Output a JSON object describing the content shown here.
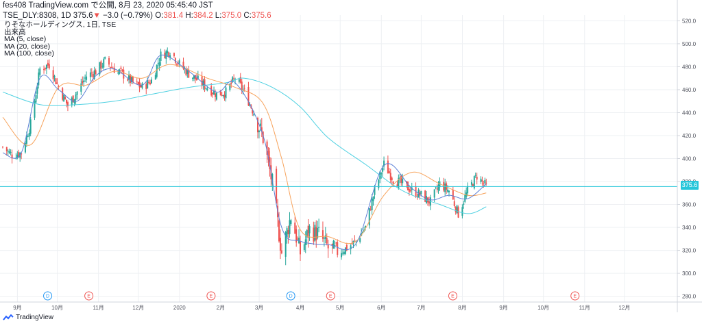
{
  "header": {
    "line1": "fes408 TradingView.com で公開, 8月 23, 2020 05:45:40 JST",
    "symbol": "TSE_DLY:8308, 1D",
    "last": "375.6",
    "change": "−3.0 (−0.79%)",
    "o_label": "O:",
    "o": "381.4",
    "h_label": "H:",
    "h": "384.2",
    "l_label": "L:",
    "l": "375.0",
    "c_label": "C:",
    "c": "375.6"
  },
  "legend": {
    "title": "りそなホールディングス, 1日, TSE",
    "volume": "出来高",
    "ma5": "MA (5, close)",
    "ma20": "MA (20, close)",
    "ma100": "MA (100, close)"
  },
  "price_tag": "375.6",
  "footer": {
    "brand": "TradingView"
  },
  "colors": {
    "up": "#26a69a",
    "down": "#ef5350",
    "ma5": "#5c7fd6",
    "ma20": "#f7a35c",
    "ma100": "#4dd0e1",
    "price_line": "#26c6da",
    "grid": "#eef0f3",
    "axis_text": "#50535e"
  },
  "chart_data": {
    "type": "candlestick",
    "y_ticks": [
      "520.0",
      "500.0",
      "480.0",
      "460.0",
      "440.0",
      "420.0",
      "400.0",
      "380.0",
      "360.0",
      "340.0",
      "320.0",
      "300.0",
      "280.0"
    ],
    "ylim": [
      275,
      525
    ],
    "x_labels": [
      "9月",
      "10月",
      "11月",
      "12月",
      "2020",
      "2月",
      "3月",
      "4月",
      "5月",
      "6月",
      "7月",
      "8月",
      "9月",
      "10月",
      "11月",
      "12月"
    ],
    "last_price": 375.6,
    "events": [
      {
        "type": "D",
        "month_index": 1
      },
      {
        "type": "E",
        "month_index": 2
      },
      {
        "type": "E",
        "month_index": 5
      },
      {
        "type": "D",
        "month_index": 7
      },
      {
        "type": "E",
        "month_index": 8
      },
      {
        "type": "E",
        "month_index": 11
      },
      {
        "type": "E",
        "month_index": 14
      }
    ],
    "close_path": [
      [
        "2019-08-23",
        410
      ],
      [
        "2019-08-30",
        403
      ],
      [
        "2019-09-06",
        405
      ],
      [
        "2019-09-13",
        430
      ],
      [
        "2019-09-20",
        478
      ],
      [
        "2019-09-27",
        482
      ],
      [
        "2019-10-04",
        462
      ],
      [
        "2019-10-11",
        446
      ],
      [
        "2019-10-18",
        458
      ],
      [
        "2019-10-25",
        472
      ],
      [
        "2019-11-01",
        476
      ],
      [
        "2019-11-08",
        485
      ],
      [
        "2019-11-15",
        478
      ],
      [
        "2019-11-22",
        473
      ],
      [
        "2019-11-29",
        466
      ],
      [
        "2019-12-06",
        462
      ],
      [
        "2019-12-13",
        468
      ],
      [
        "2019-12-20",
        490
      ],
      [
        "2019-12-27",
        494
      ],
      [
        "2020-01-03",
        482
      ],
      [
        "2020-01-10",
        474
      ],
      [
        "2020-01-17",
        468
      ],
      [
        "2020-01-24",
        462
      ],
      [
        "2020-01-31",
        456
      ],
      [
        "2020-02-07",
        458
      ],
      [
        "2020-02-14",
        470
      ],
      [
        "2020-02-21",
        458
      ],
      [
        "2020-02-28",
        440
      ],
      [
        "2020-03-06",
        418
      ],
      [
        "2020-03-13",
        378
      ],
      [
        "2020-03-20",
        318
      ],
      [
        "2020-03-27",
        350
      ],
      [
        "2020-04-03",
        318
      ],
      [
        "2020-04-10",
        338
      ],
      [
        "2020-04-17",
        334
      ],
      [
        "2020-04-24",
        322
      ],
      [
        "2020-05-01",
        318
      ],
      [
        "2020-05-08",
        322
      ],
      [
        "2020-05-15",
        328
      ],
      [
        "2020-05-22",
        340
      ],
      [
        "2020-05-29",
        372
      ],
      [
        "2020-06-05",
        395
      ],
      [
        "2020-06-12",
        382
      ],
      [
        "2020-06-19",
        378
      ],
      [
        "2020-06-26",
        372
      ],
      [
        "2020-07-03",
        368
      ],
      [
        "2020-07-10",
        362
      ],
      [
        "2020-07-17",
        378
      ],
      [
        "2020-07-24",
        372
      ],
      [
        "2020-07-31",
        352
      ],
      [
        "2020-08-07",
        372
      ],
      [
        "2020-08-14",
        385
      ],
      [
        "2020-08-21",
        375.6
      ]
    ],
    "ma5_anchors": [
      [
        "2019-08-23",
        405
      ],
      [
        "2019-09-06",
        405
      ],
      [
        "2019-09-20",
        470
      ],
      [
        "2019-10-04",
        460
      ],
      [
        "2019-10-18",
        450
      ],
      [
        "2019-11-01",
        472
      ],
      [
        "2019-11-15",
        478
      ],
      [
        "2019-12-06",
        464
      ],
      [
        "2019-12-20",
        490
      ],
      [
        "2020-01-10",
        476
      ],
      [
        "2020-01-31",
        458
      ],
      [
        "2020-02-14",
        466
      ],
      [
        "2020-03-06",
        420
      ],
      [
        "2020-03-20",
        340
      ],
      [
        "2020-04-03",
        328
      ],
      [
        "2020-04-24",
        325
      ],
      [
        "2020-05-15",
        326
      ],
      [
        "2020-06-05",
        394
      ],
      [
        "2020-06-26",
        374
      ],
      [
        "2020-07-10",
        364
      ],
      [
        "2020-07-24",
        368
      ],
      [
        "2020-08-07",
        365
      ],
      [
        "2020-08-21",
        378
      ]
    ],
    "ma20_anchors": [
      [
        "2019-08-23",
        436
      ],
      [
        "2019-09-13",
        412
      ],
      [
        "2019-10-04",
        462
      ],
      [
        "2019-10-25",
        464
      ],
      [
        "2019-11-15",
        476
      ],
      [
        "2019-12-06",
        470
      ],
      [
        "2019-12-27",
        482
      ],
      [
        "2020-01-24",
        470
      ],
      [
        "2020-02-14",
        462
      ],
      [
        "2020-03-06",
        448
      ],
      [
        "2020-03-20",
        400
      ],
      [
        "2020-04-03",
        338
      ],
      [
        "2020-04-24",
        332
      ],
      [
        "2020-05-15",
        328
      ],
      [
        "2020-06-05",
        368
      ],
      [
        "2020-06-26",
        388
      ],
      [
        "2020-07-17",
        378
      ],
      [
        "2020-08-07",
        368
      ],
      [
        "2020-08-21",
        370
      ]
    ],
    "ma100_anchors": [
      [
        "2019-08-23",
        458
      ],
      [
        "2019-09-20",
        447
      ],
      [
        "2019-10-18",
        447
      ],
      [
        "2019-11-15",
        450
      ],
      [
        "2019-12-13",
        456
      ],
      [
        "2020-01-10",
        462
      ],
      [
        "2020-02-07",
        466
      ],
      [
        "2020-02-21",
        470
      ],
      [
        "2020-03-13",
        462
      ],
      [
        "2020-04-03",
        445
      ],
      [
        "2020-04-24",
        418
      ],
      [
        "2020-05-22",
        395
      ],
      [
        "2020-06-19",
        372
      ],
      [
        "2020-07-17",
        360
      ],
      [
        "2020-08-07",
        352
      ],
      [
        "2020-08-21",
        358
      ]
    ]
  }
}
